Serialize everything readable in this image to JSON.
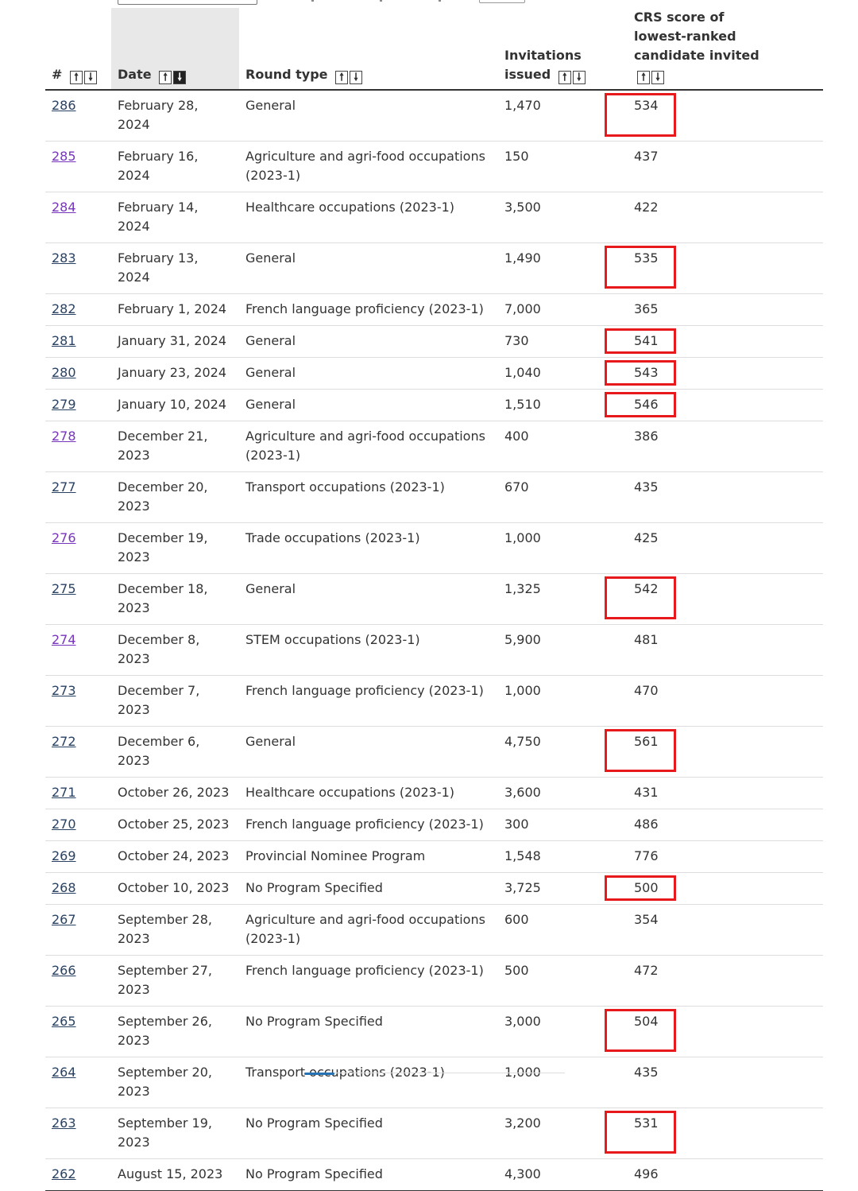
{
  "table": {
    "headers": {
      "num": "#",
      "date": "Date",
      "round_type": "Round type",
      "invitations": "Invitations issued",
      "crs": "CRS score of lowest-ranked candidate invited"
    },
    "sort": {
      "column": "date",
      "direction": "descending"
    },
    "rows": [
      {
        "num": "286",
        "date": "February 28, 2024",
        "round_type": "General",
        "invitations": "1,470",
        "crs": "534",
        "highlighted": true
      },
      {
        "num": "285",
        "date": "February 16, 2024",
        "round_type": "Agriculture and agri-food occupations (2023-1)",
        "invitations": "150",
        "crs": "437",
        "highlighted": false,
        "visited": true
      },
      {
        "num": "284",
        "date": "February 14, 2024",
        "round_type": "Healthcare occupations (2023-1)",
        "invitations": "3,500",
        "crs": "422",
        "highlighted": false,
        "visited": true
      },
      {
        "num": "283",
        "date": "February 13, 2024",
        "round_type": "General",
        "invitations": "1,490",
        "crs": "535",
        "highlighted": true
      },
      {
        "num": "282",
        "date": "February 1, 2024",
        "round_type": "French language proficiency (2023-1)",
        "invitations": "7,000",
        "crs": "365",
        "highlighted": false
      },
      {
        "num": "281",
        "date": "January 31, 2024",
        "round_type": "General",
        "invitations": "730",
        "crs": "541",
        "highlighted": true
      },
      {
        "num": "280",
        "date": "January 23, 2024",
        "round_type": "General",
        "invitations": "1,040",
        "crs": "543",
        "highlighted": true
      },
      {
        "num": "279",
        "date": "January 10, 2024",
        "round_type": "General",
        "invitations": "1,510",
        "crs": "546",
        "highlighted": true
      },
      {
        "num": "278",
        "date": "December 21, 2023",
        "round_type": "Agriculture and agri-food occupations (2023-1)",
        "invitations": "400",
        "crs": "386",
        "highlighted": false,
        "visited": true
      },
      {
        "num": "277",
        "date": "December 20, 2023",
        "round_type": "Transport occupations (2023-1)",
        "invitations": "670",
        "crs": "435",
        "highlighted": false
      },
      {
        "num": "276",
        "date": "December 19, 2023",
        "round_type": "Trade occupations (2023-1)",
        "invitations": "1,000",
        "crs": "425",
        "highlighted": false,
        "visited": true
      },
      {
        "num": "275",
        "date": "December 18, 2023",
        "round_type": "General",
        "invitations": "1,325",
        "crs": "542",
        "highlighted": true
      },
      {
        "num": "274",
        "date": "December 8, 2023",
        "round_type": "STEM occupations (2023-1)",
        "invitations": "5,900",
        "crs": "481",
        "highlighted": false,
        "visited": true
      },
      {
        "num": "273",
        "date": "December 7, 2023",
        "round_type": "French language proficiency (2023-1)",
        "invitations": "1,000",
        "crs": "470",
        "highlighted": false
      },
      {
        "num": "272",
        "date": "December 6, 2023",
        "round_type": "General",
        "invitations": "4,750",
        "crs": "561",
        "highlighted": true
      },
      {
        "num": "271",
        "date": "October 26, 2023",
        "round_type": "Healthcare occupations (2023-1)",
        "invitations": "3,600",
        "crs": "431",
        "highlighted": false
      },
      {
        "num": "270",
        "date": "October 25, 2023",
        "round_type": "French language proficiency (2023-1)",
        "invitations": "300",
        "crs": "486",
        "highlighted": false
      },
      {
        "num": "269",
        "date": "October 24, 2023",
        "round_type": "Provincial Nominee Program",
        "invitations": "1,548",
        "crs": "776",
        "highlighted": false
      },
      {
        "num": "268",
        "date": "October 10, 2023",
        "round_type": "No Program Specified",
        "invitations": "3,725",
        "crs": "500",
        "highlighted": true
      },
      {
        "num": "267",
        "date": "September 28, 2023",
        "round_type": "Agriculture and agri-food occupations (2023-1)",
        "invitations": "600",
        "crs": "354",
        "highlighted": false
      },
      {
        "num": "266",
        "date": "September 27, 2023",
        "round_type": "French language proficiency (2023-1)",
        "invitations": "500",
        "crs": "472",
        "highlighted": false
      },
      {
        "num": "265",
        "date": "September 26, 2023",
        "round_type": "No Program Specified",
        "invitations": "3,000",
        "crs": "504",
        "highlighted": true
      },
      {
        "num": "264",
        "date": "September 20, 2023",
        "round_type": "Transport occupations (2023-1)",
        "invitations": "1,000",
        "crs": "435",
        "highlighted": false
      },
      {
        "num": "263",
        "date": "September 19, 2023",
        "round_type": "No Program Specified",
        "invitations": "3,200",
        "crs": "531",
        "highlighted": true
      },
      {
        "num": "262",
        "date": "August 15, 2023",
        "round_type": "No Program Specified",
        "invitations": "4,300",
        "crs": "496",
        "highlighted": false
      }
    ]
  },
  "colors": {
    "highlight": "#e8191c",
    "link": "#284162",
    "visited_link": "#7834bc",
    "sorted_header_bg": "#e8e8e8"
  },
  "icons": {
    "sort_up": "arrow-up-icon",
    "sort_down": "arrow-down-icon"
  }
}
